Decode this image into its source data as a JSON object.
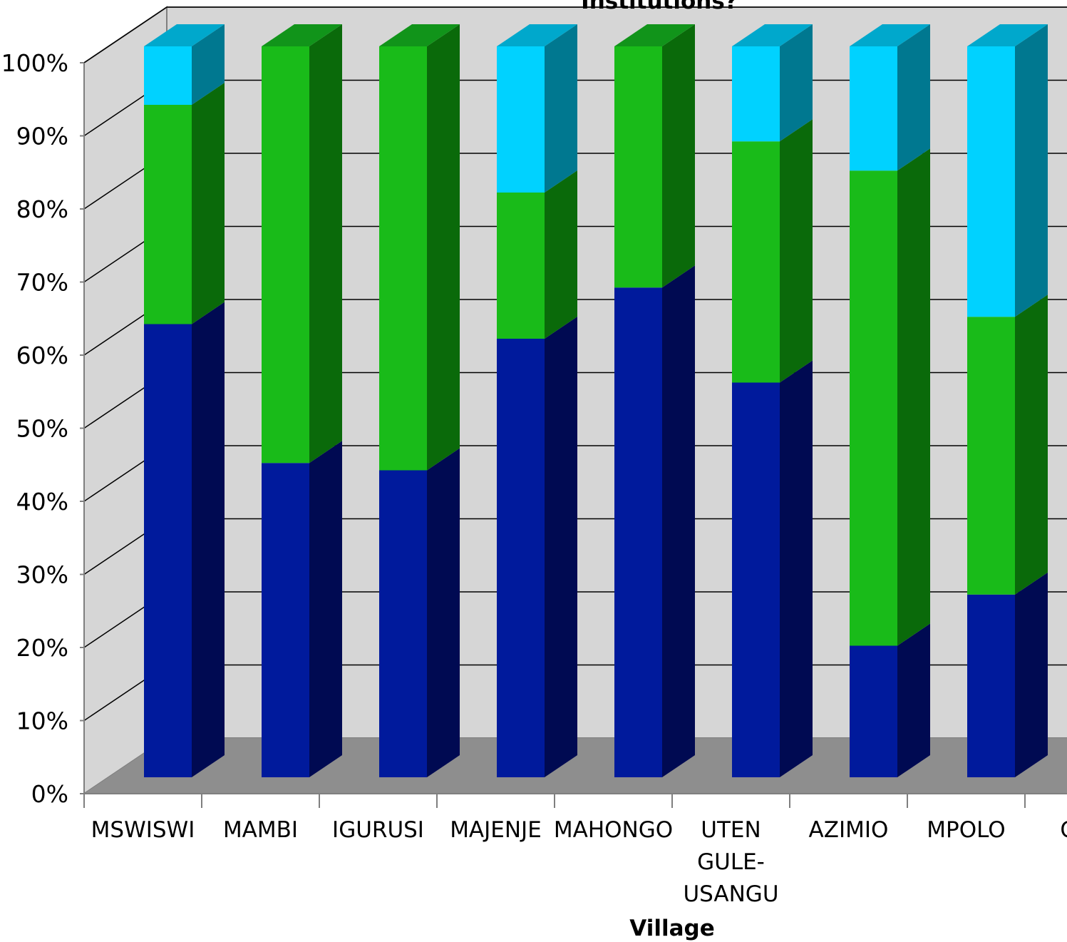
{
  "chart_data": {
    "type": "bar",
    "stacked": true,
    "normalized_percent": true,
    "style": "3d",
    "title": "Institutions?",
    "xlabel": "Village",
    "ylabel": "",
    "ylim": [
      0,
      100
    ],
    "yticks": [
      "0%",
      "10%",
      "20%",
      "30%",
      "40%",
      "50%",
      "60%",
      "70%",
      "80%",
      "90%",
      "100%"
    ],
    "categories": [
      "MSWISWI",
      "MAMBI",
      "IGURUSI",
      "MAJENJE",
      "MAHONGO",
      "UTEN GULE- USANGU",
      "AZIMIO",
      "MPOLO",
      "CHA"
    ],
    "category_label_lines": [
      [
        "MSWISWI"
      ],
      [
        "MAMBI"
      ],
      [
        "IGURUSI"
      ],
      [
        "MAJENJE"
      ],
      [
        "MAHONGO"
      ],
      [
        "UTEN",
        "GULE-",
        "USANGU"
      ],
      [
        "AZIMIO"
      ],
      [
        "MPOLO"
      ],
      [
        "CHA"
      ]
    ],
    "series": [
      {
        "color": "#001a9c",
        "side_color": "#000a52",
        "top_color": "#000f70",
        "values": [
          62,
          43,
          42,
          60,
          67,
          54,
          18,
          25,
          null
        ]
      },
      {
        "color": "#19bb19",
        "side_color": "#0a6a0a",
        "top_color": "#11941a",
        "values": [
          30,
          57,
          58,
          20,
          33,
          33,
          65,
          38,
          null
        ]
      },
      {
        "color": "#00d2ff",
        "side_color": "#007890",
        "top_color": "#00a8cc",
        "values": [
          8,
          0,
          0,
          20,
          0,
          13,
          17,
          37,
          null
        ]
      }
    ],
    "grid": true,
    "colors": {
      "back_wall": "#d6d6d6",
      "side_wall": "#d6d6d6",
      "floor": "#8e8e8e",
      "gridline": "#000000",
      "axis": "#7f7f7f"
    }
  }
}
